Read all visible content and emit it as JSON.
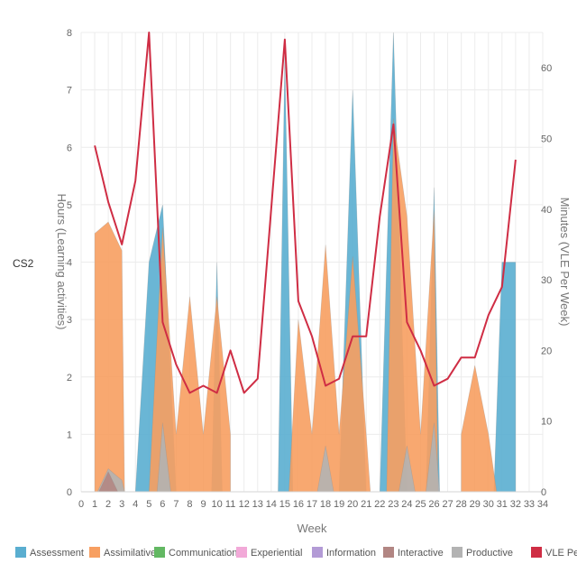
{
  "chart_data": {
    "type": "area",
    "row_label": "CS2",
    "xlabel": "Week",
    "ylabel_left": "Hours (Learning activities)",
    "ylabel_right": "Minutes (VLE Per Week)",
    "xlim": [
      0,
      34
    ],
    "ylim_left": [
      0,
      8
    ],
    "ylim_right": [
      0,
      65
    ],
    "x_ticks": [
      0,
      1,
      2,
      3,
      4,
      5,
      6,
      7,
      8,
      9,
      10,
      11,
      12,
      13,
      14,
      15,
      16,
      17,
      18,
      19,
      20,
      21,
      22,
      23,
      24,
      25,
      26,
      27,
      28,
      29,
      30,
      31,
      32,
      33,
      34
    ],
    "y_ticks_left": [
      0,
      1,
      2,
      3,
      4,
      5,
      6,
      7,
      8
    ],
    "y_ticks_right": [
      0,
      10,
      20,
      30,
      40,
      50,
      60
    ],
    "grid": true,
    "legend_position": "bottom",
    "colors": {
      "Assessment": "#5aaed0",
      "Assimilative": "#f79f61",
      "Communication": "#63b863",
      "Experiential": "#f2a9d8",
      "Information": "#b39bd6",
      "Interactive": "#b28683",
      "Productive": "#b3b3b3",
      "VLE Per Week": "#cf2d44"
    },
    "legend": [
      "Assessment",
      "Assimilative",
      "Communication",
      "Experiential",
      "Information",
      "Interactive",
      "Productive",
      "VLE Per Week"
    ],
    "areas": [
      {
        "name": "Assessment",
        "segments": [
          [
            [
              4,
              0
            ],
            [
              5,
              4
            ],
            [
              6,
              5
            ],
            [
              7,
              0
            ]
          ],
          [
            [
              9.6,
              0
            ],
            [
              10,
              4
            ],
            [
              10.4,
              0
            ]
          ],
          [
            [
              13.5,
              0
            ],
            [
              14,
              0
            ],
            [
              14.5,
              0
            ],
            [
              15,
              7.6
            ],
            [
              15.6,
              0
            ]
          ],
          [
            [
              19,
              0
            ],
            [
              20,
              7
            ],
            [
              21,
              0
            ]
          ],
          [
            [
              22,
              0
            ],
            [
              23,
              8
            ],
            [
              24,
              0
            ]
          ],
          [
            [
              25.4,
              0
            ],
            [
              26,
              5.3
            ],
            [
              26.4,
              0
            ]
          ],
          [
            [
              30.4,
              0
            ],
            [
              31,
              4
            ],
            [
              32,
              4
            ],
            [
              32,
              0
            ]
          ]
        ]
      },
      {
        "name": "Assimilative",
        "segments": [
          [
            [
              1,
              0
            ],
            [
              1,
              4.5
            ],
            [
              2,
              4.7
            ],
            [
              3,
              4.2
            ],
            [
              3.2,
              0
            ]
          ],
          [
            [
              5,
              0
            ],
            [
              6,
              4.6
            ],
            [
              7,
              1
            ],
            [
              8,
              3.4
            ],
            [
              9,
              1
            ],
            [
              10,
              3.4
            ],
            [
              11,
              1
            ],
            [
              11,
              0
            ]
          ],
          [
            [
              15.3,
              0
            ],
            [
              16,
              3
            ],
            [
              17,
              1
            ],
            [
              18,
              4.3
            ],
            [
              19,
              1
            ],
            [
              20,
              4.1
            ],
            [
              21,
              1
            ],
            [
              21.3,
              0
            ]
          ],
          [
            [
              22.5,
              0
            ],
            [
              23,
              6.5
            ],
            [
              24,
              4.8
            ],
            [
              25,
              1
            ],
            [
              26,
              4.9
            ],
            [
              26.3,
              0
            ]
          ],
          [
            [
              28,
              0
            ],
            [
              28,
              1
            ],
            [
              29,
              2.2
            ],
            [
              30,
              1
            ],
            [
              30.6,
              0
            ]
          ]
        ]
      },
      {
        "name": "Productive",
        "segments": [
          [
            [
              1.2,
              0
            ],
            [
              2,
              0.4
            ],
            [
              3,
              0.2
            ],
            [
              3.2,
              0
            ]
          ],
          [
            [
              5.6,
              0
            ],
            [
              6,
              1.2
            ],
            [
              6.6,
              0
            ]
          ],
          [
            [
              17.4,
              0
            ],
            [
              18,
              0.8
            ],
            [
              18.6,
              0
            ]
          ],
          [
            [
              23.4,
              0
            ],
            [
              24,
              0.8
            ],
            [
              24.6,
              0
            ]
          ],
          [
            [
              25.4,
              0
            ],
            [
              26,
              1.2
            ],
            [
              26.4,
              0
            ]
          ]
        ]
      },
      {
        "name": "Interactive",
        "segments": [
          [
            [
              1.3,
              0
            ],
            [
              2,
              0.35
            ],
            [
              2.7,
              0
            ]
          ]
        ]
      }
    ],
    "line_series": {
      "name": "VLE Per Week",
      "x": [
        1,
        2,
        3,
        4,
        5,
        6,
        7,
        8,
        9,
        10,
        11,
        12,
        13,
        14,
        15,
        16,
        17,
        18,
        19,
        20,
        21,
        22,
        23,
        24,
        25,
        26,
        27,
        28,
        29,
        30,
        31,
        32
      ],
      "y": [
        49,
        41,
        35,
        44,
        65,
        24,
        18,
        14,
        15,
        14,
        20,
        14,
        16,
        40,
        64,
        27,
        22,
        15,
        16,
        22,
        22,
        39,
        52,
        24,
        20,
        15,
        16,
        19,
        19,
        25,
        29,
        47
      ]
    }
  }
}
